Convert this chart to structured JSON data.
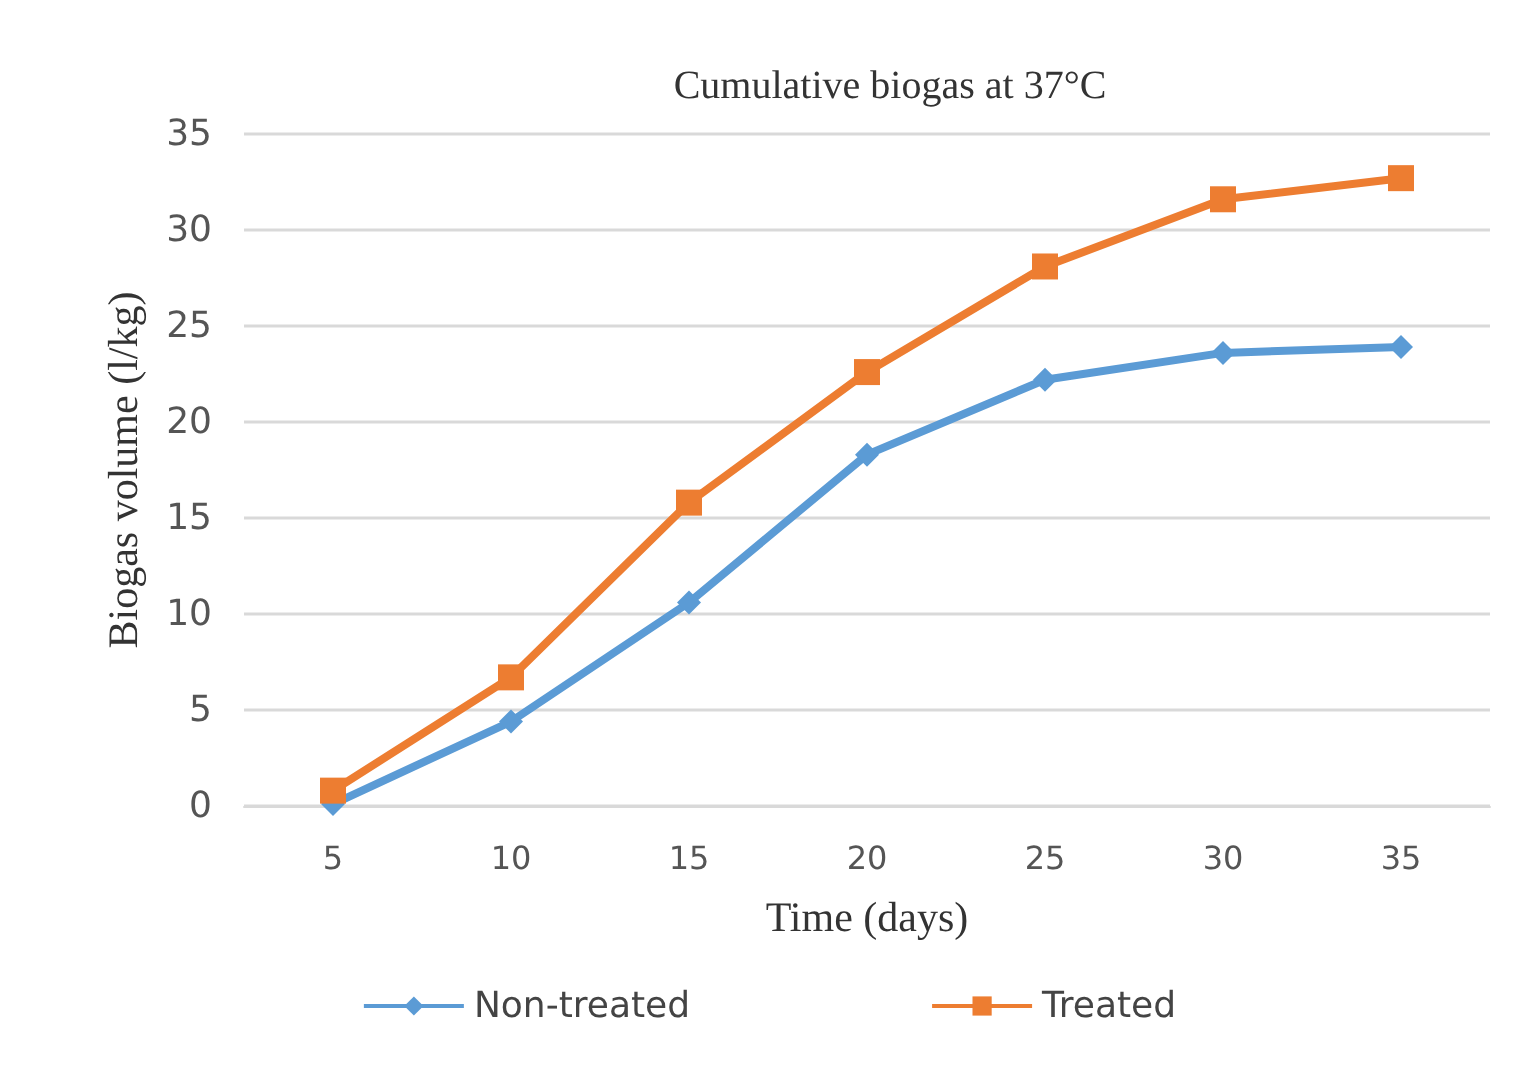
{
  "chart_data": {
    "type": "line",
    "title": "Cumulative biogas at 37°C",
    "xlabel": "Time (days)",
    "ylabel": "Biogas volume (l/kg)",
    "categories": [
      "5",
      "10",
      "15",
      "20",
      "25",
      "30",
      "35"
    ],
    "series": [
      {
        "name": "Non-treated",
        "color": "#5b9bd5",
        "marker": "diamond",
        "values": [
          0.1,
          4.4,
          10.6,
          18.3,
          22.2,
          23.6,
          23.9
        ]
      },
      {
        "name": "Treated",
        "color": "#ed7d31",
        "marker": "square",
        "values": [
          0.8,
          6.7,
          15.8,
          22.6,
          28.1,
          31.6,
          32.7
        ]
      }
    ],
    "ylim": [
      0,
      35
    ],
    "yticks": [
      0,
      5,
      10,
      15,
      20,
      25,
      30,
      35
    ],
    "grid": "y",
    "legend": "bottom"
  }
}
